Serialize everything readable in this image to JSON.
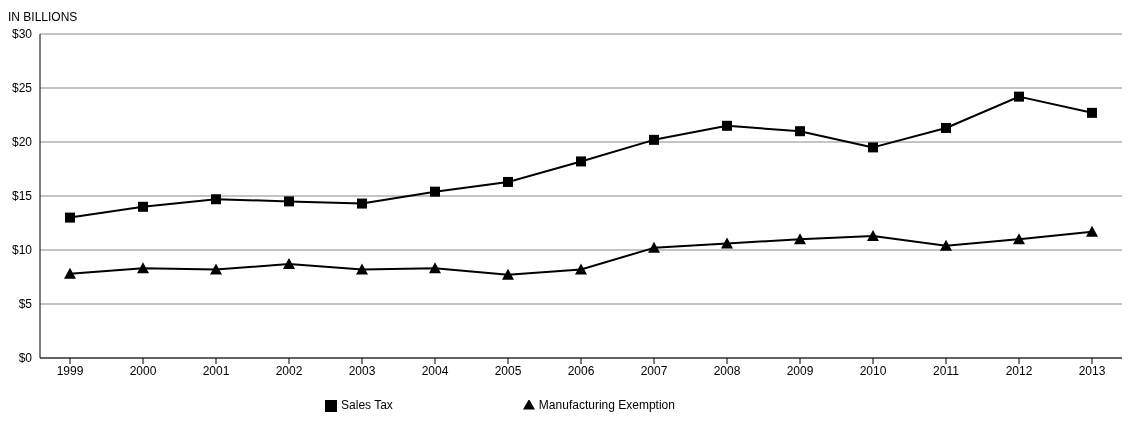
{
  "chart_data": {
    "type": "line",
    "ylabel": "IN BILLIONS",
    "categories": [
      "1999",
      "2000",
      "2001",
      "2002",
      "2003",
      "2004",
      "2005",
      "2006",
      "2007",
      "2008",
      "2009",
      "2010",
      "2011",
      "2012",
      "2013"
    ],
    "series": [
      {
        "name": "Sales Tax",
        "color": "#000000",
        "marker": "square",
        "values": [
          13.0,
          14.0,
          14.7,
          14.5,
          14.3,
          15.4,
          16.3,
          18.2,
          20.2,
          21.5,
          21.0,
          19.5,
          21.3,
          24.2,
          22.7
        ]
      },
      {
        "name": "Manufacturing Exemption",
        "color": "#000000",
        "marker": "triangle",
        "values": [
          7.8,
          8.3,
          8.2,
          8.7,
          8.2,
          8.3,
          7.7,
          8.2,
          10.2,
          10.6,
          11.0,
          11.3,
          10.4,
          11.0,
          11.7
        ]
      }
    ],
    "ylim": [
      0,
      30
    ],
    "yticks": [
      {
        "value": 0,
        "label": "$0"
      },
      {
        "value": 5,
        "label": "$5"
      },
      {
        "value": 10,
        "label": "$10"
      },
      {
        "value": 15,
        "label": "$15"
      },
      {
        "value": 20,
        "label": "$20"
      },
      {
        "value": 25,
        "label": "$25"
      },
      {
        "value": 30,
        "label": "$30"
      }
    ],
    "grid": "y",
    "legend": "bottom",
    "line_style": "solid"
  }
}
